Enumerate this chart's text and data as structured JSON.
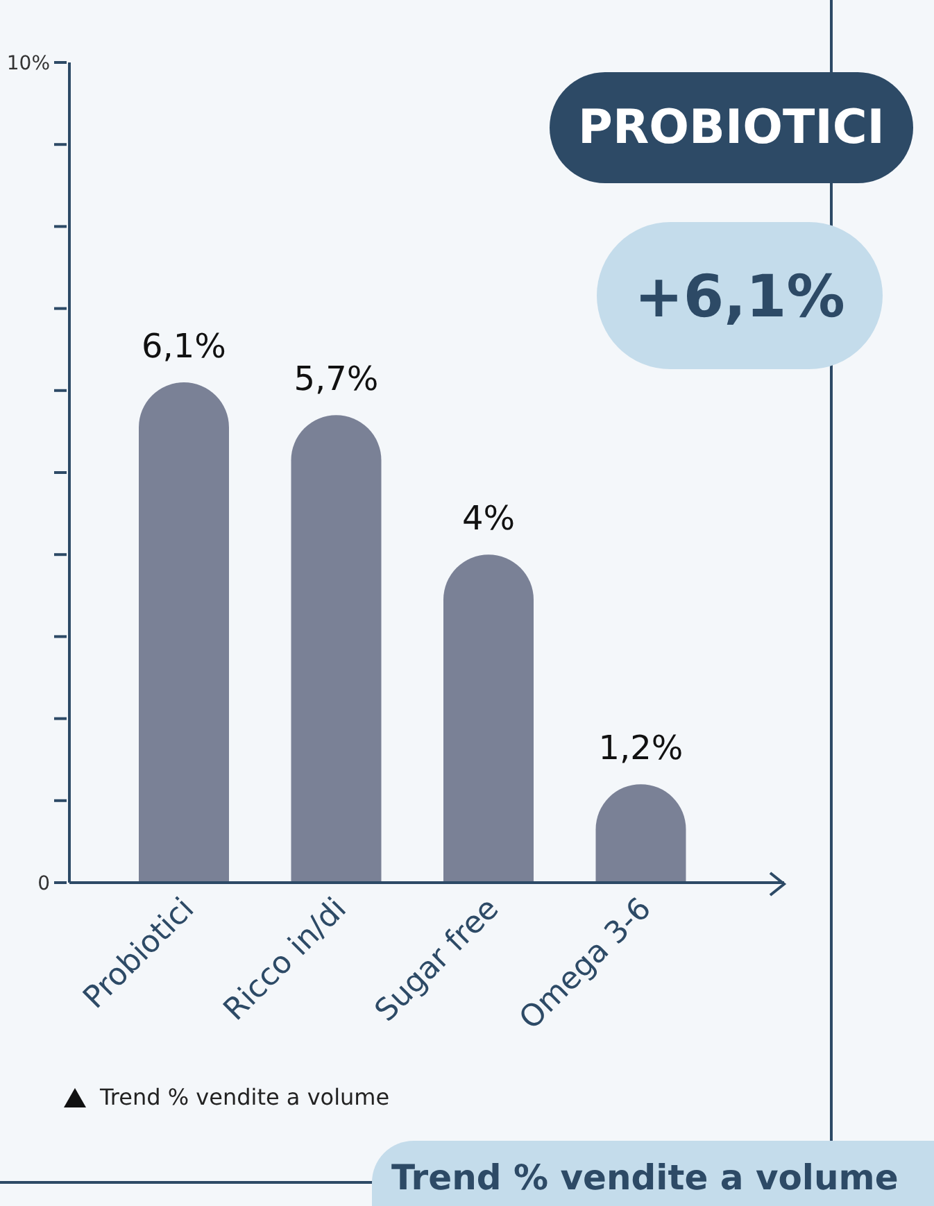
{
  "chart_data": {
    "type": "bar",
    "categories": [
      "Probiotici",
      "Ricco in/di",
      "Sugar free",
      "Omega 3-6"
    ],
    "values": [
      6.1,
      5.7,
      4,
      1.2
    ],
    "value_labels": [
      "6,1%",
      "5,7%",
      "4%",
      "1,2%"
    ],
    "color": "#7a8196",
    "ylim": [
      0,
      10
    ],
    "yticks": [
      {
        "value": 0,
        "label": "0"
      },
      {
        "value": 1,
        "label": null
      },
      {
        "value": 2,
        "label": null
      },
      {
        "value": 3,
        "label": null
      },
      {
        "value": 4,
        "label": null
      },
      {
        "value": 5,
        "label": null
      },
      {
        "value": 6,
        "label": null
      },
      {
        "value": 7,
        "label": null
      },
      {
        "value": 8,
        "label": null
      },
      {
        "value": 9,
        "label": null
      },
      {
        "value": 10,
        "label": "10%"
      }
    ],
    "grid": false,
    "legend": false,
    "annotations": [
      "PROBIOTICI",
      "+6,1%",
      "Trend % vendite a volume",
      "Trend % vendite a volume"
    ]
  }
}
